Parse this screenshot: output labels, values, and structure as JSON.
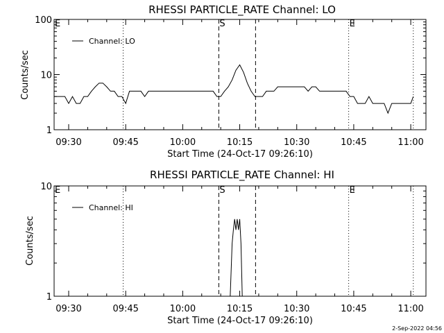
{
  "chart_data": [
    {
      "type": "line",
      "title": "RHESSI PARTICLE_RATE Channel: LO",
      "xlabel": "Start Time (24-Oct-17 09:26:10)",
      "ylabel": "Counts/sec",
      "y_scale": "log",
      "ylim": [
        1,
        100
      ],
      "y_ticks": [
        1,
        10,
        100
      ],
      "y_tick_labels": [
        "1",
        "10",
        "100"
      ],
      "xlim": [
        "09:26:10",
        "11:04:00"
      ],
      "x_ticks": [
        "09:30",
        "09:45",
        "10:00",
        "10:15",
        "10:30",
        "10:45",
        "11:00"
      ],
      "grid": false,
      "legend": {
        "placement": "top-left",
        "entries": [
          "Channel: LO"
        ]
      },
      "markers": [
        {
          "label": "E",
          "time": "09:26:10",
          "style": "none"
        },
        {
          "label": "",
          "time": "09:44:20",
          "style": "dotted"
        },
        {
          "label": "S",
          "time": "10:09:30",
          "style": "dashed"
        },
        {
          "label": "",
          "time": "10:19:10",
          "style": "dashed"
        },
        {
          "label": "E",
          "time": "10:43:40",
          "style": "dotted"
        },
        {
          "label": "",
          "time": "11:00:40",
          "style": "dotted"
        }
      ],
      "series": [
        {
          "name": "Channel: LO",
          "color": "#000000",
          "x": [
            "09:26:10",
            "09:27:00",
            "09:28:00",
            "09:29:00",
            "09:30:00",
            "09:31:00",
            "09:32:00",
            "09:33:00",
            "09:34:00",
            "09:35:00",
            "09:36:00",
            "09:37:00",
            "09:38:00",
            "09:39:00",
            "09:40:00",
            "09:41:00",
            "09:42:00",
            "09:43:00",
            "09:44:00",
            "09:45:00",
            "09:46:00",
            "09:47:00",
            "09:48:00",
            "09:49:00",
            "09:50:00",
            "09:51:00",
            "09:52:00",
            "09:53:00",
            "09:54:00",
            "09:55:00",
            "09:56:00",
            "09:57:00",
            "09:58:00",
            "09:59:00",
            "10:00:00",
            "10:01:00",
            "10:02:00",
            "10:03:00",
            "10:04:00",
            "10:05:00",
            "10:06:00",
            "10:07:00",
            "10:08:00",
            "10:09:00",
            "10:10:00",
            "10:11:00",
            "10:12:00",
            "10:13:00",
            "10:14:00",
            "10:15:00",
            "10:16:00",
            "10:17:00",
            "10:18:00",
            "10:19:00",
            "10:20:00",
            "10:21:00",
            "10:22:00",
            "10:23:00",
            "10:24:00",
            "10:25:00",
            "10:26:00",
            "10:27:00",
            "10:28:00",
            "10:29:00",
            "10:30:00",
            "10:31:00",
            "10:32:00",
            "10:33:00",
            "10:34:00",
            "10:35:00",
            "10:36:00",
            "10:37:00",
            "10:38:00",
            "10:39:00",
            "10:40:00",
            "10:41:00",
            "10:42:00",
            "10:43:00",
            "10:44:00",
            "10:45:00",
            "10:46:00",
            "10:47:00",
            "10:48:00",
            "10:49:00",
            "10:50:00",
            "10:51:00",
            "10:52:00",
            "10:53:00",
            "10:54:00",
            "10:55:00",
            "10:56:00",
            "10:57:00",
            "10:58:00",
            "10:59:00",
            "11:00:00",
            "11:00:40"
          ],
          "values": [
            4,
            4,
            4,
            4,
            3,
            4,
            3,
            3,
            4,
            4,
            5,
            6,
            7,
            7,
            6,
            5,
            5,
            4,
            4,
            3,
            5,
            5,
            5,
            5,
            4,
            5,
            5,
            5,
            5,
            5,
            5,
            5,
            5,
            5,
            5,
            5,
            5,
            5,
            5,
            5,
            5,
            5,
            5,
            4,
            4,
            5,
            6,
            8,
            12,
            15,
            11,
            7,
            5,
            4,
            4,
            4,
            5,
            5,
            5,
            6,
            6,
            6,
            6,
            6,
            6,
            6,
            6,
            5,
            6,
            6,
            5,
            5,
            5,
            5,
            5,
            5,
            5,
            5,
            4,
            4,
            3,
            3,
            3,
            4,
            3,
            3,
            3,
            3,
            2,
            3,
            3,
            3,
            3,
            3,
            3,
            4
          ]
        }
      ]
    },
    {
      "type": "line",
      "title": "RHESSI PARTICLE_RATE Channel: HI",
      "xlabel": "Start Time (24-Oct-17 09:26:10)",
      "ylabel": "Counts/sec",
      "y_scale": "log",
      "ylim": [
        1,
        10
      ],
      "y_ticks": [
        1,
        10
      ],
      "y_tick_labels": [
        "1",
        "10"
      ],
      "xlim": [
        "09:26:10",
        "11:04:00"
      ],
      "x_ticks": [
        "09:30",
        "09:45",
        "10:00",
        "10:15",
        "10:30",
        "10:45",
        "11:00"
      ],
      "grid": false,
      "legend": {
        "placement": "top-left",
        "entries": [
          "Channel: HI"
        ]
      },
      "markers": [
        {
          "label": "E",
          "time": "09:26:10",
          "style": "none"
        },
        {
          "label": "",
          "time": "09:44:20",
          "style": "dotted"
        },
        {
          "label": "S",
          "time": "10:09:30",
          "style": "dashed"
        },
        {
          "label": "",
          "time": "10:19:10",
          "style": "dashed"
        },
        {
          "label": "E",
          "time": "10:43:40",
          "style": "dotted"
        },
        {
          "label": "",
          "time": "11:00:40",
          "style": "dotted"
        }
      ],
      "series": [
        {
          "name": "Channel: HI",
          "color": "#000000",
          "x": [
            "10:12:30",
            "10:13:00",
            "10:13:20",
            "10:13:40",
            "10:14:00",
            "10:14:20",
            "10:14:40",
            "10:15:00",
            "10:15:20",
            "10:15:40"
          ],
          "values": [
            1,
            3,
            4,
            5,
            4,
            5,
            4,
            5,
            3,
            1
          ]
        }
      ]
    }
  ],
  "footer": {
    "timestamp": "2-Sep-2022 04:56"
  }
}
